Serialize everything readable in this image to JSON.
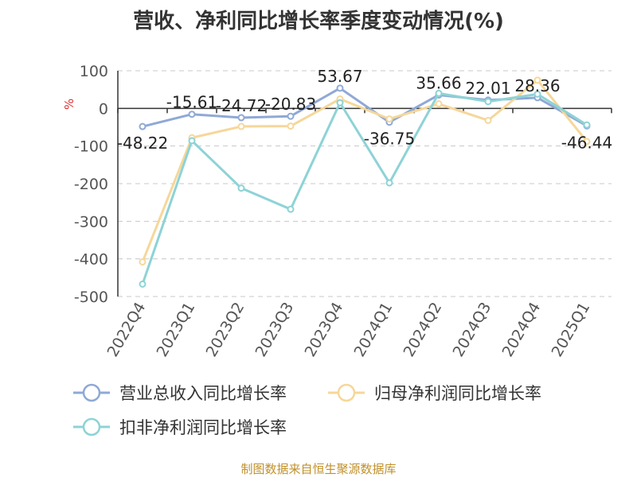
{
  "chart_data": {
    "type": "line",
    "title": "营收、净利同比增长率季度变动情况(%)",
    "ylabel": "%",
    "xlabel": "",
    "categories": [
      "2022Q4",
      "2023Q1",
      "2023Q2",
      "2023Q3",
      "2023Q4",
      "2024Q1",
      "2024Q2",
      "2024Q3",
      "2024Q4",
      "2025Q1"
    ],
    "ylim": [
      -500,
      100
    ],
    "yticks": [
      100,
      0,
      -100,
      -200,
      -300,
      -400,
      -500
    ],
    "grid": true,
    "legend_position": "bottom",
    "series": [
      {
        "name": "营业总收入同比增长率",
        "color": "#8fa9d6",
        "values": [
          -48.22,
          -15.61,
          -24.72,
          -20.83,
          53.67,
          -36.75,
          35.66,
          22.01,
          28.36,
          -46.44
        ],
        "labels": [
          "-48.22",
          "-15.61",
          "-24.72",
          "-20.83",
          "53.67",
          "-36.75",
          "35.66",
          "22.01",
          "28.36",
          "-46.44"
        ]
      },
      {
        "name": "归母净利润同比增长率",
        "color": "#f6d79a",
        "values": [
          -408,
          -78,
          -48,
          -47,
          25,
          -28,
          12,
          -32,
          75,
          -88
        ]
      },
      {
        "name": "扣非净利润同比增长率",
        "color": "#8dd3d6",
        "values": [
          -467,
          -86,
          -212,
          -268,
          15,
          -198,
          40,
          18,
          38,
          -44
        ]
      }
    ],
    "source": "制图数据来自恒生聚源数据库"
  }
}
